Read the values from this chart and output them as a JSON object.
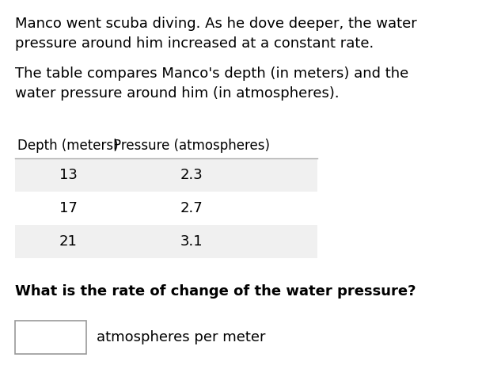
{
  "paragraph1": "Manco went scuba diving. As he dove deeper, the water\npressure around him increased at a constant rate.",
  "paragraph2": "The table compares Manco's depth (in meters) and the\nwater pressure around him (in atmospheres).",
  "col1_header": "Depth (meters)",
  "col2_header": "Pressure (atmospheres)",
  "rows": [
    [
      13,
      2.3
    ],
    [
      17,
      2.7
    ],
    [
      21,
      3.1
    ]
  ],
  "question": "What is the rate of change of the water pressure?",
  "answer_label": "atmospheres per meter",
  "bg_color": "#ffffff",
  "text_color": "#000000",
  "table_header_line_color": "#aaaaaa",
  "table_row_alt_color": "#f0f0f0",
  "table_row_white_color": "#ffffff",
  "input_box_color": "#ffffff",
  "input_box_border": "#999999",
  "font_size_body": 13,
  "font_size_header": 12,
  "font_size_question": 13,
  "font_size_answer": 13
}
